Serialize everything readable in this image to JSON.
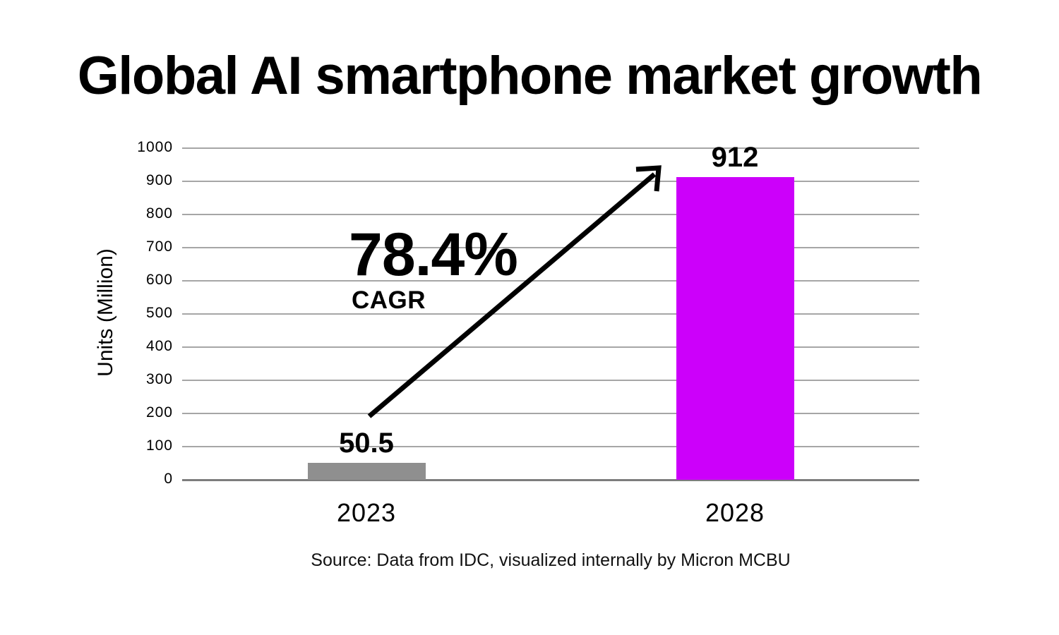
{
  "title": "Global AI smartphone market growth",
  "colors": {
    "background": "#ffffff",
    "text": "#000000",
    "gridline": "#a6a6a6",
    "axis_line": "#7d7d7d",
    "bar_2023": "#8f8f8f",
    "bar_2028": "#cc00fa",
    "arrow": "#000000"
  },
  "chart_data": {
    "type": "bar",
    "title": "Global AI smartphone market growth",
    "categories": [
      "2023",
      "2028"
    ],
    "values": [
      50.5,
      912
    ],
    "value_labels": [
      "50.5",
      "912"
    ],
    "bar_colors": [
      "#8f8f8f",
      "#cc00fa"
    ],
    "xlabel": "",
    "ylabel": "Units (Million)",
    "ylim": [
      0,
      1000
    ],
    "yticks": [
      0,
      100,
      200,
      300,
      400,
      500,
      600,
      700,
      800,
      900,
      1000
    ],
    "grid": true,
    "legend": false,
    "annotation": {
      "text": "78.4%",
      "subtext": "CAGR"
    },
    "source": "Source: Data from IDC, visualized internally by Micron MCBU"
  }
}
